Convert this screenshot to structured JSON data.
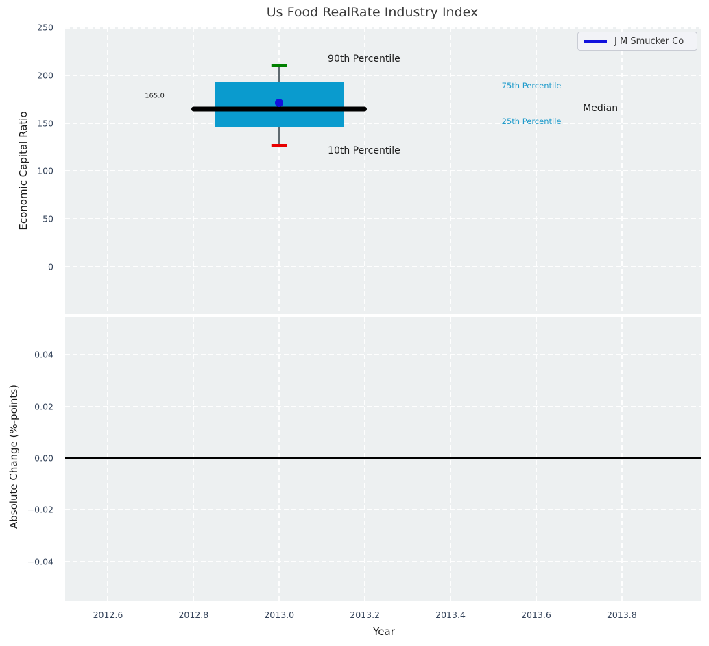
{
  "title": "Us Food RealRate Industry Index",
  "legend": {
    "label": "J M Smucker Co"
  },
  "colors": {
    "plot_bg": "#edf0f1",
    "grid": "#ffffff",
    "tick_label": "#34435a",
    "title": "#3a3a3a",
    "box_fill": "#0a9bce",
    "median_line": "#000000",
    "company_marker": "#1212dd",
    "legend_line": "#1212dd",
    "p90_cap": "#008000",
    "p10_cap": "#e80000",
    "whisker": "#5f6a70",
    "zero_line": "#000000",
    "percentile_label": "#1f9bcb",
    "annotation_black": "#1c1c1c"
  },
  "chart_data": [
    {
      "type": "box",
      "panel": "top",
      "title": "Us Food RealRate Industry Index",
      "ylabel": "Economic Capital Ratio",
      "xlabel": "Year",
      "xlim": [
        2012.5,
        2013.986
      ],
      "ylim": [
        -49.4,
        250
      ],
      "grid": "white dashed, on",
      "legend_position": "upper right",
      "yticks": [
        {
          "v": 250,
          "label": "250"
        },
        {
          "v": 200,
          "label": "200"
        },
        {
          "v": 150,
          "label": "150"
        },
        {
          "v": 100,
          "label": "100"
        },
        {
          "v": 50,
          "label": "50"
        },
        {
          "v": 0,
          "label": "0"
        }
      ],
      "xticks": [
        {
          "v": 2012.6,
          "label": "2012.6"
        },
        {
          "v": 2012.8,
          "label": "2012.8"
        },
        {
          "v": 2013.0,
          "label": "2013.0"
        },
        {
          "v": 2013.2,
          "label": "2013.2"
        },
        {
          "v": 2013.4,
          "label": "2013.4"
        },
        {
          "v": 2013.6,
          "label": "2013.6"
        },
        {
          "v": 2013.8,
          "label": "2013.8"
        }
      ],
      "box": {
        "x": 2013.0,
        "median": 165.0,
        "q1": 146,
        "q3": 193,
        "p10": 127,
        "p90": 210,
        "company": "J M Smucker Co",
        "company_value": 171,
        "box_half_width_years": 0.151,
        "median_line_half_width_years": 0.205,
        "cap_half_width_years": 0.018
      },
      "annotations": [
        {
          "name": "annotation-90th-percentile",
          "text": "90th Percentile",
          "x": 2013.198,
          "y": 217.3,
          "colorKey": "annotation_black",
          "size": 14
        },
        {
          "name": "annotation-10th-percentile",
          "text": "10th Percentile",
          "x": 2013.198,
          "y": 121.0,
          "colorKey": "annotation_black",
          "size": 14
        },
        {
          "name": "annotation-median-value",
          "text": "165.0",
          "x": 2012.709,
          "y": 178.4,
          "colorKey": "annotation_black",
          "size": 10
        },
        {
          "name": "annotation-75th-percentile",
          "text": "75th Percentile",
          "x": 2013.589,
          "y": 189.2,
          "colorKey": "percentile_label",
          "size": 11.5
        },
        {
          "name": "annotation-25th-percentile",
          "text": "25th Percentile",
          "x": 2013.589,
          "y": 151.9,
          "colorKey": "percentile_label",
          "size": 11.5
        },
        {
          "name": "annotation-median-label",
          "text": "Median",
          "x": 2013.75,
          "y": 165.5,
          "colorKey": "annotation_black",
          "size": 14
        }
      ]
    },
    {
      "type": "line",
      "panel": "bottom",
      "ylabel": "Absolute Change (%-points)",
      "xlabel": "Year",
      "xlim": [
        2012.5,
        2013.986
      ],
      "ylim": [
        -0.0554,
        0.0546
      ],
      "grid": "white dashed, on",
      "zero_line": 0.0,
      "series": [],
      "yticks": [
        {
          "v": 0.04,
          "label": "0.04"
        },
        {
          "v": 0.02,
          "label": "0.02"
        },
        {
          "v": 0.0,
          "label": "0.00"
        },
        {
          "v": -0.02,
          "label": "−0.02"
        },
        {
          "v": -0.04,
          "label": "−0.04"
        }
      ],
      "xticks": [
        {
          "v": 2012.6,
          "label": "2012.6"
        },
        {
          "v": 2012.8,
          "label": "2012.8"
        },
        {
          "v": 2013.0,
          "label": "2013.0"
        },
        {
          "v": 2013.2,
          "label": "2013.2"
        },
        {
          "v": 2013.4,
          "label": "2013.4"
        },
        {
          "v": 2013.6,
          "label": "2013.6"
        },
        {
          "v": 2013.8,
          "label": "2013.8"
        }
      ]
    }
  ]
}
